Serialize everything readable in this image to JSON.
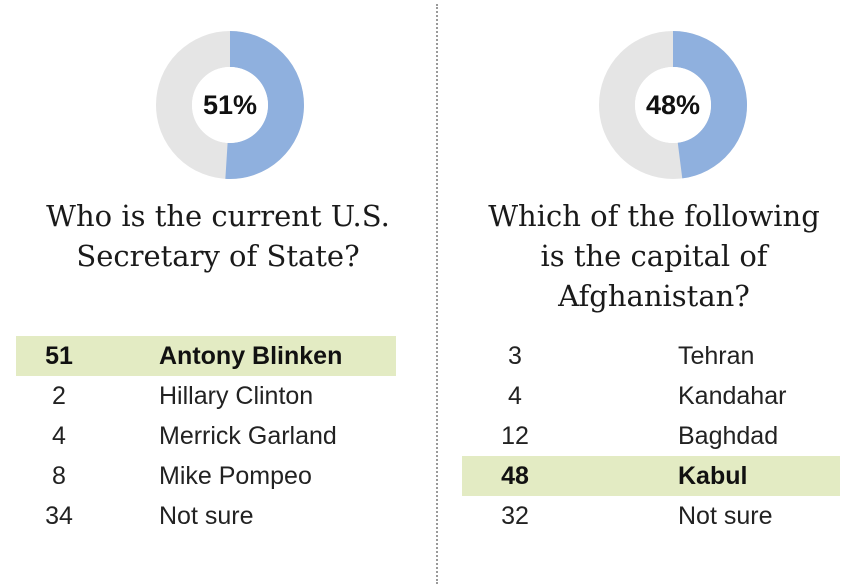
{
  "chart_data": [
    {
      "type": "table",
      "donut_value": 51,
      "donut_label": "51%",
      "question": "Who is the current U.S. Secretary of State?",
      "question_lines": [
        "Who is the current U.S.",
        "Secretary of State?"
      ],
      "rows": [
        {
          "value": "51",
          "answer": "Antony Blinken",
          "correct": true
        },
        {
          "value": "2",
          "answer": "Hillary Clinton",
          "correct": false
        },
        {
          "value": "4",
          "answer": "Merrick Garland",
          "correct": false
        },
        {
          "value": "8",
          "answer": "Mike Pompeo",
          "correct": false
        },
        {
          "value": "34",
          "answer": "Not sure",
          "correct": false
        }
      ]
    },
    {
      "type": "table",
      "donut_value": 48,
      "donut_label": "48%",
      "question": "Which of the following is the capital of Afghanistan?",
      "question_lines": [
        "Which of the following",
        "is the capital of",
        "Afghanistan?"
      ],
      "rows": [
        {
          "value": "3",
          "answer": "Tehran",
          "correct": false
        },
        {
          "value": "4",
          "answer": "Kandahar",
          "correct": false
        },
        {
          "value": "12",
          "answer": "Baghdad",
          "correct": false
        },
        {
          "value": "48",
          "answer": "Kabul",
          "correct": true
        },
        {
          "value": "32",
          "answer": "Not sure",
          "correct": false
        }
      ]
    }
  ],
  "colors": {
    "donut_fill": "#8fb0de",
    "donut_track": "#e5e5e5",
    "correct_highlight": "#e3ebc3"
  }
}
